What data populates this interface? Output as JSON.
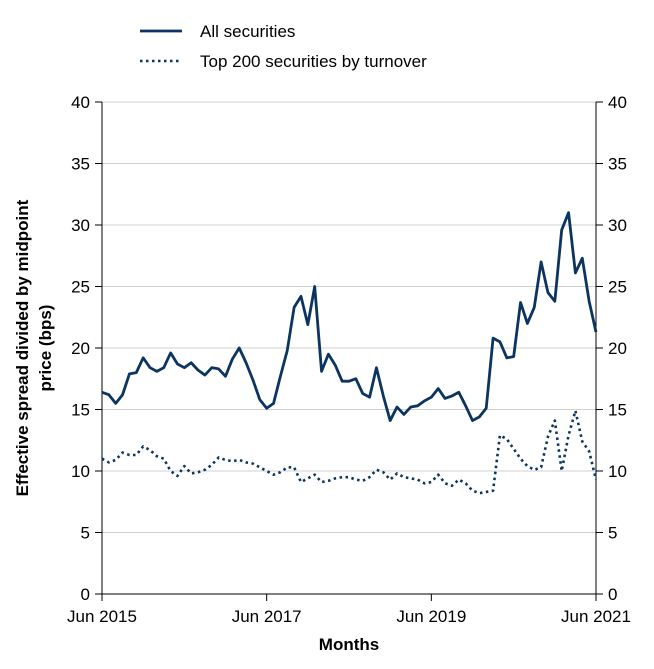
{
  "chart_data": {
    "type": "line",
    "xlabel": "Months",
    "ylabel_lines": [
      "Effective spread divided by midpoint",
      "price (bps)"
    ],
    "x_ticks": [
      "Jun 2015",
      "Jun 2017",
      "Jun 2019",
      "Jun 2021"
    ],
    "x_start": "2015-06",
    "x_end": "2021-06",
    "ylim": [
      0,
      40
    ],
    "y_ticks": [
      "0",
      "5",
      "10",
      "15",
      "20",
      "25",
      "30",
      "35",
      "40"
    ],
    "grid": "horizontal",
    "legend_position": "top",
    "series": [
      {
        "name": "All securities",
        "color": "#0b3560",
        "style": "solid",
        "points": [
          [
            "2015-06",
            16.4
          ],
          [
            "2015-07",
            16.2
          ],
          [
            "2015-08",
            15.5
          ],
          [
            "2015-09",
            16.2
          ],
          [
            "2015-10",
            17.9
          ],
          [
            "2015-11",
            18.0
          ],
          [
            "2015-12",
            19.2
          ],
          [
            "2016-01",
            18.4
          ],
          [
            "2016-02",
            18.1
          ],
          [
            "2016-03",
            18.4
          ],
          [
            "2016-04",
            19.6
          ],
          [
            "2016-05",
            18.7
          ],
          [
            "2016-06",
            18.4
          ],
          [
            "2016-07",
            18.8
          ],
          [
            "2016-08",
            18.2
          ],
          [
            "2016-09",
            17.8
          ],
          [
            "2016-10",
            18.4
          ],
          [
            "2016-11",
            18.3
          ],
          [
            "2016-12",
            17.7
          ],
          [
            "2017-01",
            19.1
          ],
          [
            "2017-02",
            20.0
          ],
          [
            "2017-03",
            18.8
          ],
          [
            "2017-04",
            17.4
          ],
          [
            "2017-05",
            15.8
          ],
          [
            "2017-06",
            15.1
          ],
          [
            "2017-07",
            15.5
          ],
          [
            "2017-08",
            17.7
          ],
          [
            "2017-09",
            19.8
          ],
          [
            "2017-10",
            23.3
          ],
          [
            "2017-11",
            24.2
          ],
          [
            "2017-12",
            21.9
          ],
          [
            "2018-01",
            25.0
          ],
          [
            "2018-02",
            18.1
          ],
          [
            "2018-03",
            19.5
          ],
          [
            "2018-04",
            18.6
          ],
          [
            "2018-05",
            17.3
          ],
          [
            "2018-06",
            17.3
          ],
          [
            "2018-07",
            17.5
          ],
          [
            "2018-08",
            16.3
          ],
          [
            "2018-09",
            16.0
          ],
          [
            "2018-10",
            18.4
          ],
          [
            "2018-11",
            16.1
          ],
          [
            "2018-12",
            14.1
          ],
          [
            "2019-01",
            15.2
          ],
          [
            "2019-02",
            14.6
          ],
          [
            "2019-03",
            15.2
          ],
          [
            "2019-04",
            15.3
          ],
          [
            "2019-05",
            15.7
          ],
          [
            "2019-06",
            16.0
          ],
          [
            "2019-07",
            16.7
          ],
          [
            "2019-08",
            15.9
          ],
          [
            "2019-09",
            16.1
          ],
          [
            "2019-10",
            16.4
          ],
          [
            "2019-11",
            15.3
          ],
          [
            "2019-12",
            14.1
          ],
          [
            "2020-01",
            14.4
          ],
          [
            "2020-02",
            15.1
          ],
          [
            "2020-03",
            20.8
          ],
          [
            "2020-04",
            20.5
          ],
          [
            "2020-05",
            19.2
          ],
          [
            "2020-06",
            19.3
          ],
          [
            "2020-07",
            23.7
          ],
          [
            "2020-08",
            22.0
          ],
          [
            "2020-09",
            23.3
          ],
          [
            "2020-10",
            27.0
          ],
          [
            "2020-11",
            24.5
          ],
          [
            "2020-12",
            23.8
          ],
          [
            "2021-01",
            29.6
          ],
          [
            "2021-02",
            31.0
          ],
          [
            "2021-03",
            26.1
          ],
          [
            "2021-04",
            27.3
          ],
          [
            "2021-05",
            23.8
          ],
          [
            "2021-06",
            21.3
          ]
        ]
      },
      {
        "name": "Top 200 securities by turnover",
        "color": "#0b3560",
        "style": "dotted",
        "points": [
          [
            "2015-06",
            11.0
          ],
          [
            "2015-07",
            10.7
          ],
          [
            "2015-08",
            10.9
          ],
          [
            "2015-09",
            11.5
          ],
          [
            "2015-10",
            11.3
          ],
          [
            "2015-11",
            11.3
          ],
          [
            "2015-12",
            12.0
          ],
          [
            "2016-01",
            11.7
          ],
          [
            "2016-02",
            11.2
          ],
          [
            "2016-03",
            11.0
          ],
          [
            "2016-04",
            10.0
          ],
          [
            "2016-05",
            9.6
          ],
          [
            "2016-06",
            10.4
          ],
          [
            "2016-07",
            9.8
          ],
          [
            "2016-08",
            9.9
          ],
          [
            "2016-09",
            10.1
          ],
          [
            "2016-10",
            10.5
          ],
          [
            "2016-11",
            11.1
          ],
          [
            "2016-12",
            10.9
          ],
          [
            "2017-01",
            10.8
          ],
          [
            "2017-02",
            10.9
          ],
          [
            "2017-03",
            10.7
          ],
          [
            "2017-04",
            10.6
          ],
          [
            "2017-05",
            10.3
          ],
          [
            "2017-06",
            10.0
          ],
          [
            "2017-07",
            9.7
          ],
          [
            "2017-08",
            9.9
          ],
          [
            "2017-09",
            10.3
          ],
          [
            "2017-10",
            10.3
          ],
          [
            "2017-11",
            9.1
          ],
          [
            "2017-12",
            9.4
          ],
          [
            "2018-01",
            9.7
          ],
          [
            "2018-02",
            9.1
          ],
          [
            "2018-03",
            9.2
          ],
          [
            "2018-04",
            9.4
          ],
          [
            "2018-05",
            9.5
          ],
          [
            "2018-06",
            9.5
          ],
          [
            "2018-07",
            9.3
          ],
          [
            "2018-08",
            9.2
          ],
          [
            "2018-09",
            9.5
          ],
          [
            "2018-10",
            10.1
          ],
          [
            "2018-11",
            9.9
          ],
          [
            "2018-12",
            9.3
          ],
          [
            "2019-01",
            9.8
          ],
          [
            "2019-02",
            9.5
          ],
          [
            "2019-03",
            9.4
          ],
          [
            "2019-04",
            9.3
          ],
          [
            "2019-05",
            9.0
          ],
          [
            "2019-06",
            9.1
          ],
          [
            "2019-07",
            9.7
          ],
          [
            "2019-08",
            9.0
          ],
          [
            "2019-09",
            8.8
          ],
          [
            "2019-10",
            9.3
          ],
          [
            "2019-11",
            9.0
          ],
          [
            "2019-12",
            8.4
          ],
          [
            "2020-01",
            8.2
          ],
          [
            "2020-02",
            8.3
          ],
          [
            "2020-03",
            8.4
          ],
          [
            "2020-04",
            12.9
          ],
          [
            "2020-05",
            12.6
          ],
          [
            "2020-06",
            11.8
          ],
          [
            "2020-07",
            11.0
          ],
          [
            "2020-08",
            10.4
          ],
          [
            "2020-09",
            10.1
          ],
          [
            "2020-10",
            10.3
          ],
          [
            "2020-11",
            12.8
          ],
          [
            "2020-12",
            14.1
          ],
          [
            "2021-01",
            10.0
          ],
          [
            "2021-02",
            12.9
          ],
          [
            "2021-03",
            14.9
          ],
          [
            "2021-04",
            12.4
          ],
          [
            "2021-05",
            11.6
          ],
          [
            "2021-06",
            9.3
          ]
        ]
      }
    ]
  }
}
